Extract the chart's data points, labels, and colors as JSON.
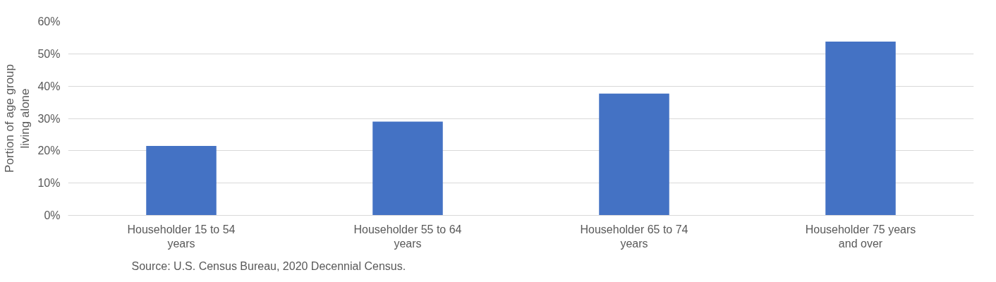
{
  "chart_data": {
    "type": "bar",
    "ylabel": "Portion of age group living alone",
    "categories": [
      "Householder 15 to 54 years",
      "Householder 55 to 64 years",
      "Householder 65 to 74 years",
      "Householder 75 years and over"
    ],
    "values": [
      0.215,
      0.29,
      0.377,
      0.538
    ],
    "color": "#4472c4",
    "ylim": [
      0,
      0.6
    ],
    "yticks": [
      {
        "value": 0,
        "label": "0%"
      },
      {
        "value": 0.1,
        "label": "10%"
      },
      {
        "value": 0.2,
        "label": "20%"
      },
      {
        "value": 0.3,
        "label": "30%"
      },
      {
        "value": 0.4,
        "label": "40%"
      },
      {
        "value": 0.5,
        "label": "50%"
      },
      {
        "value": 0.6,
        "label": "60%"
      }
    ],
    "grid": "y",
    "annotations": [
      "Source: U.S. Census Bureau, 2020 Decennial Census."
    ]
  }
}
